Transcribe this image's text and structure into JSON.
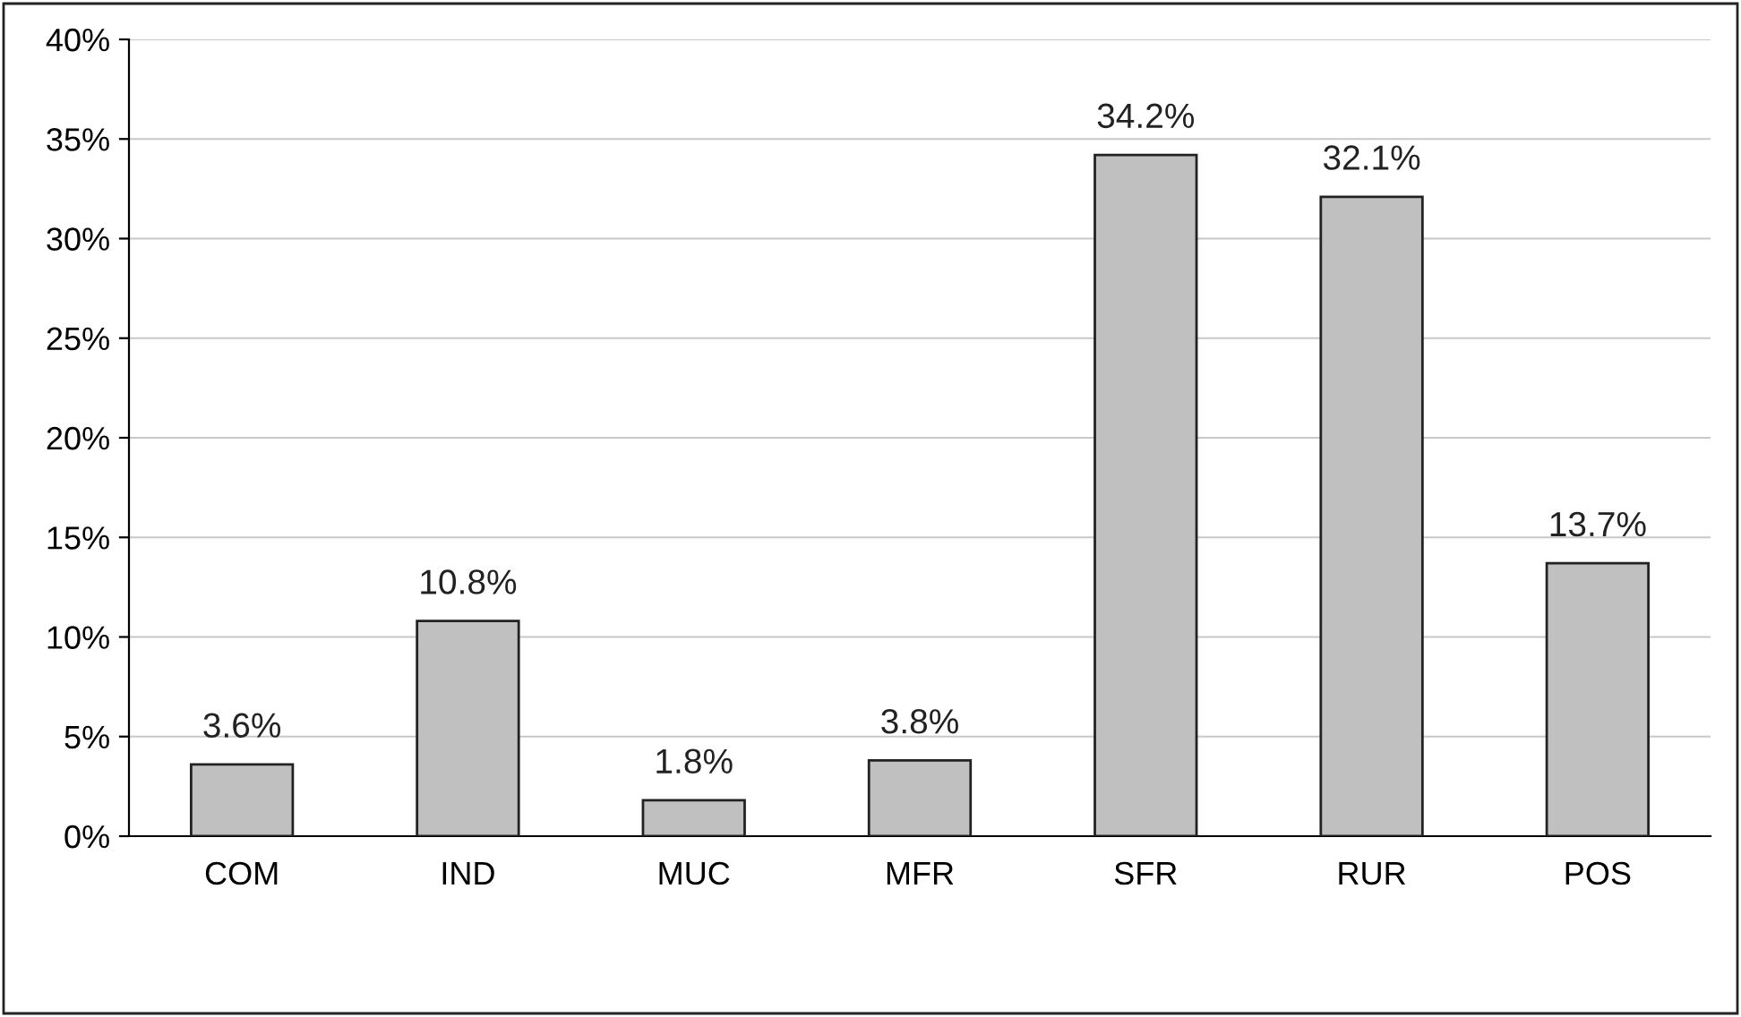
{
  "chart_data": {
    "type": "bar",
    "categories": [
      "COM",
      "IND",
      "MUC",
      "MFR",
      "SFR",
      "RUR",
      "POS"
    ],
    "values": [
      3.6,
      10.8,
      1.8,
      3.8,
      34.2,
      32.1,
      13.7
    ],
    "value_labels": [
      "3.6%",
      "10.8%",
      "1.8%",
      "3.8%",
      "34.2%",
      "32.1%",
      "13.7%"
    ],
    "color": "#c0c0c0",
    "ylim": [
      0,
      40
    ],
    "yticks": [
      {
        "value": 0,
        "label": "0%"
      },
      {
        "value": 5,
        "label": "5%"
      },
      {
        "value": 10,
        "label": "10%"
      },
      {
        "value": 15,
        "label": "15%"
      },
      {
        "value": 20,
        "label": "20%"
      },
      {
        "value": 25,
        "label": "25%"
      },
      {
        "value": 30,
        "label": "30%"
      },
      {
        "value": 35,
        "label": "35%"
      },
      {
        "value": 40,
        "label": "40%"
      }
    ],
    "grid": "y"
  }
}
